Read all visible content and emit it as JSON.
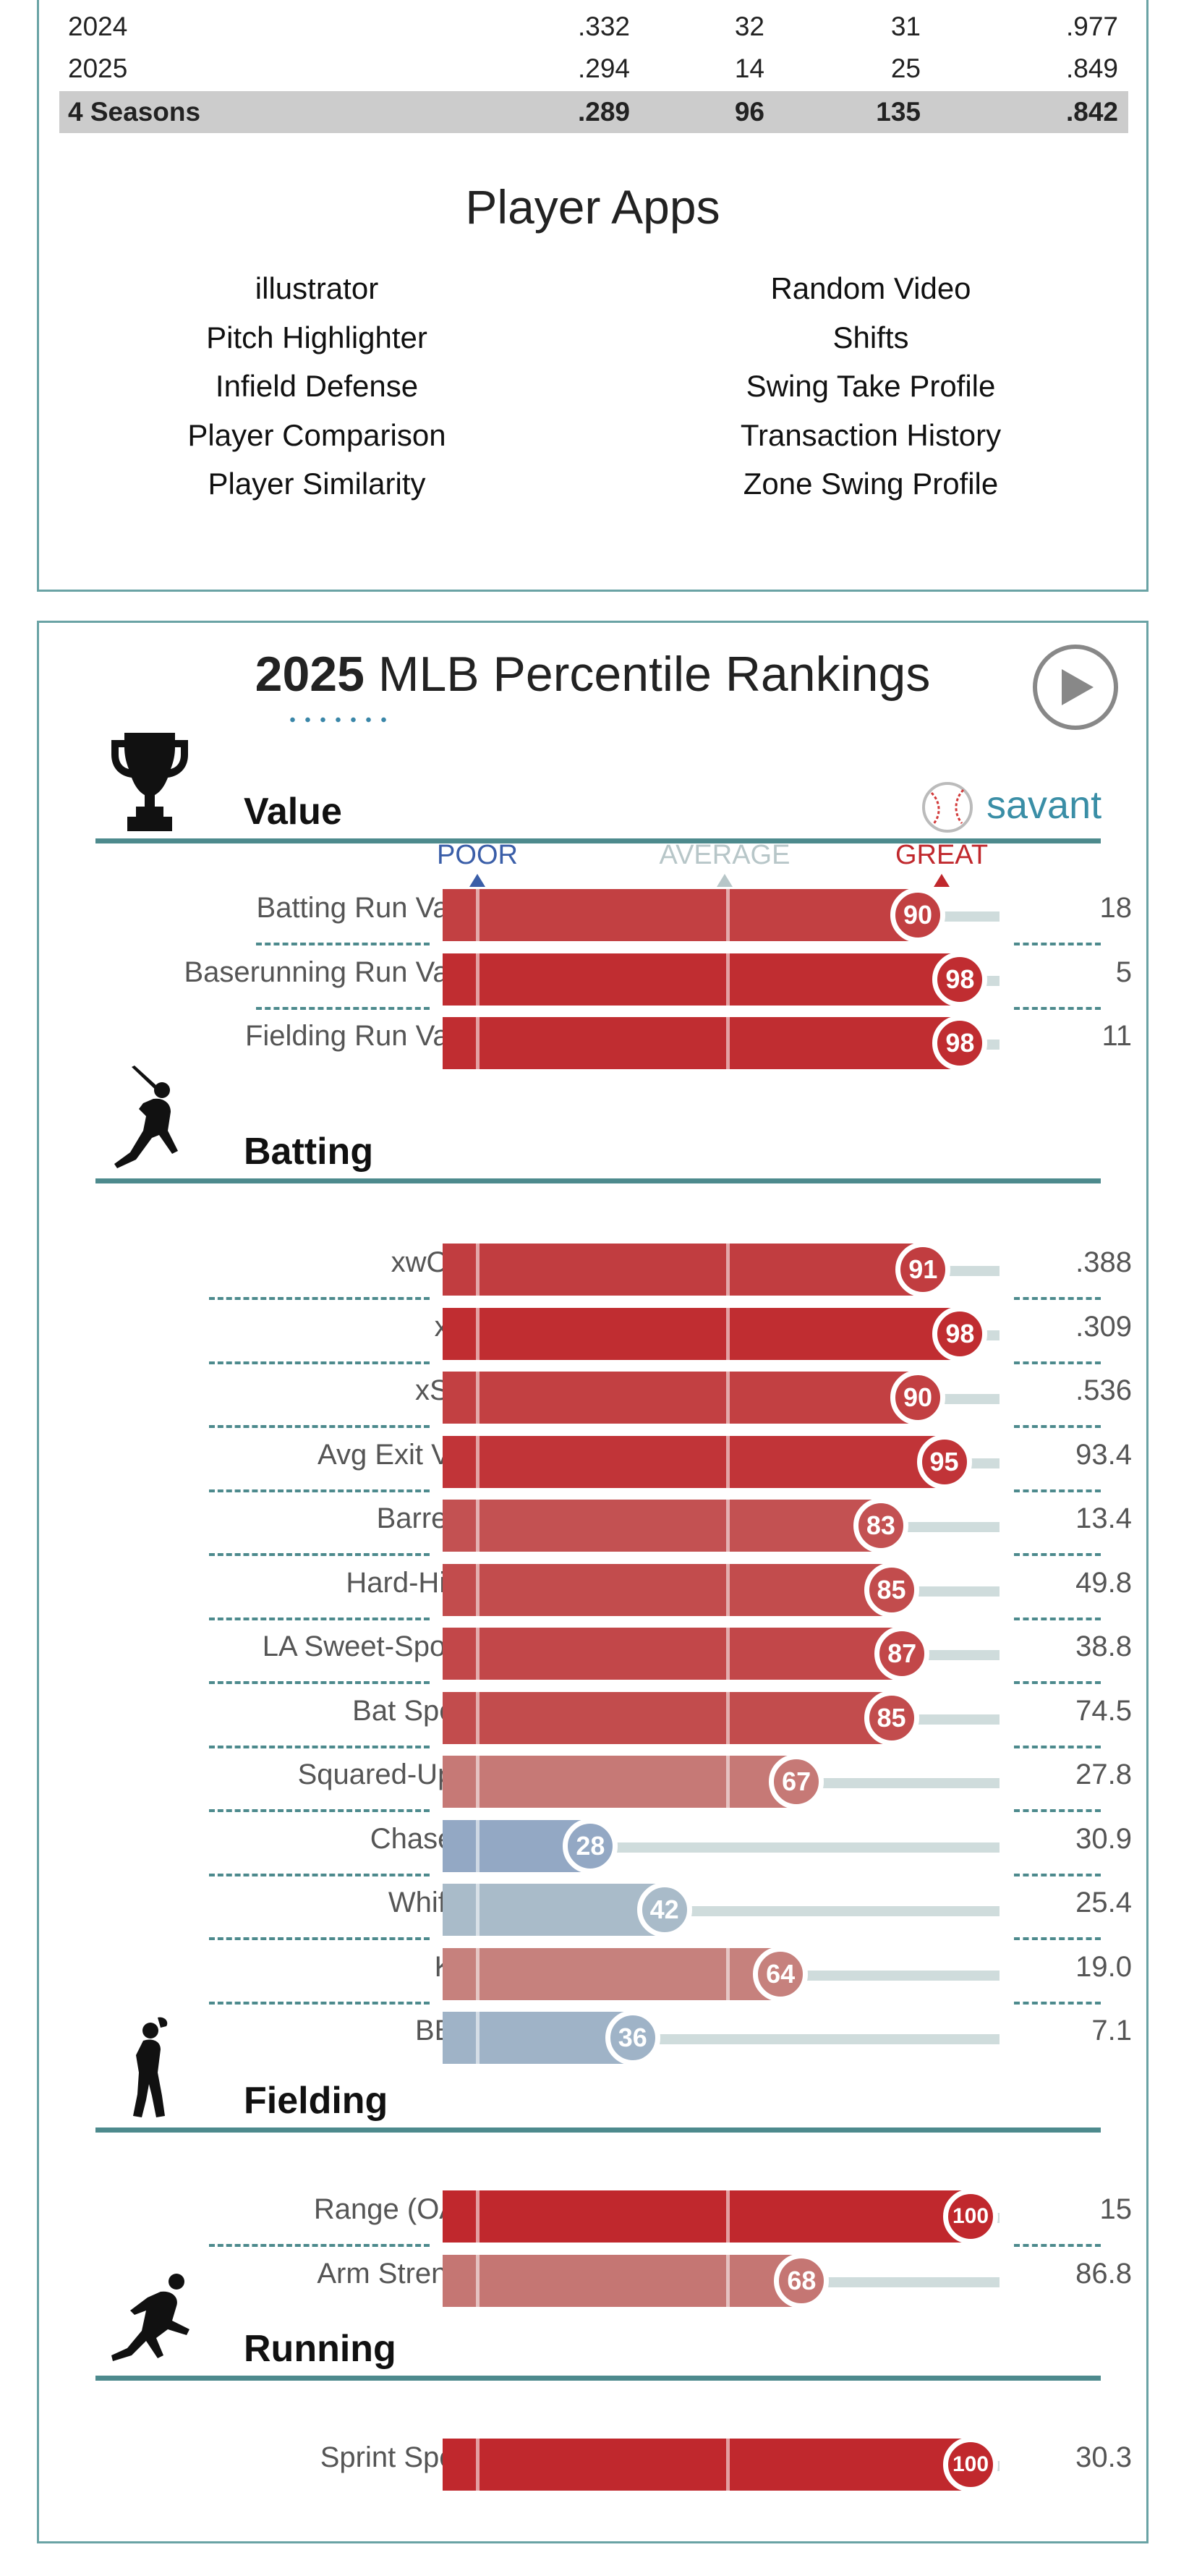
{
  "stats_table": {
    "rows": [
      {
        "season": "2024",
        "a": ".332",
        "b": "32",
        "c": "31",
        "d": ".977",
        "total": false
      },
      {
        "season": "2025",
        "a": ".294",
        "b": "14",
        "c": "25",
        "d": ".849",
        "total": false
      },
      {
        "season": "4 Seasons",
        "a": ".289",
        "b": "96",
        "c": "135",
        "d": ".842",
        "total": true
      }
    ]
  },
  "player_apps": {
    "title": "Player Apps",
    "left": [
      "illustrator",
      "Pitch Highlighter",
      "Infield Defense",
      "Player Comparison",
      "Player Similarity"
    ],
    "right": [
      "Random Video",
      "Shifts",
      "Swing Take Profile",
      "Transaction History",
      "Zone Swing Profile"
    ]
  },
  "percentile": {
    "year": "2025",
    "title_rest": "MLB Percentile Rankings",
    "brand": "savant",
    "scale": {
      "poor": "POOR",
      "average": "AVERAGE",
      "great": "GREAT"
    },
    "colors": {
      "poor": "#3a5ea8",
      "average": "#b7c6c8",
      "great": "#c0282d"
    },
    "sections": [
      {
        "key": "value",
        "title": "Value",
        "icon": "trophy-icon",
        "metrics": [
          {
            "label": "Batting Run Value",
            "percentile": 90,
            "value": "18"
          },
          {
            "label": "Baserunning Run Value",
            "percentile": 98,
            "value": "5"
          },
          {
            "label": "Fielding Run Value",
            "percentile": 98,
            "value": "11"
          }
        ]
      },
      {
        "key": "batting",
        "title": "Batting",
        "icon": "batter-icon",
        "metrics": [
          {
            "label": "xwOBA",
            "percentile": 91,
            "value": ".388"
          },
          {
            "label": "xBA",
            "percentile": 98,
            "value": ".309"
          },
          {
            "label": "xSLG",
            "percentile": 90,
            "value": ".536"
          },
          {
            "label": "Avg Exit Velo",
            "percentile": 95,
            "value": "93.4"
          },
          {
            "label": "Barrel %",
            "percentile": 83,
            "value": "13.4"
          },
          {
            "label": "Hard-Hit %",
            "percentile": 85,
            "value": "49.8"
          },
          {
            "label": "LA Sweet-Spot %",
            "percentile": 87,
            "value": "38.8"
          },
          {
            "label": "Bat Speed",
            "percentile": 85,
            "value": "74.5"
          },
          {
            "label": "Squared-Up %",
            "percentile": 67,
            "value": "27.8"
          },
          {
            "label": "Chase %",
            "percentile": 28,
            "value": "30.9"
          },
          {
            "label": "Whiff %",
            "percentile": 42,
            "value": "25.4"
          },
          {
            "label": "K %",
            "percentile": 64,
            "value": "19.0"
          },
          {
            "label": "BB %",
            "percentile": 36,
            "value": "7.1"
          }
        ]
      },
      {
        "key": "fielding",
        "title": "Fielding",
        "icon": "fielder-icon",
        "metrics": [
          {
            "label": "Range (OAA)",
            "percentile": 100,
            "value": "15"
          },
          {
            "label": "Arm Strength",
            "percentile": 68,
            "value": "86.8"
          }
        ]
      },
      {
        "key": "running",
        "title": "Running",
        "icon": "runner-icon",
        "metrics": [
          {
            "label": "Sprint Speed",
            "percentile": 100,
            "value": "30.3"
          }
        ]
      }
    ]
  }
}
